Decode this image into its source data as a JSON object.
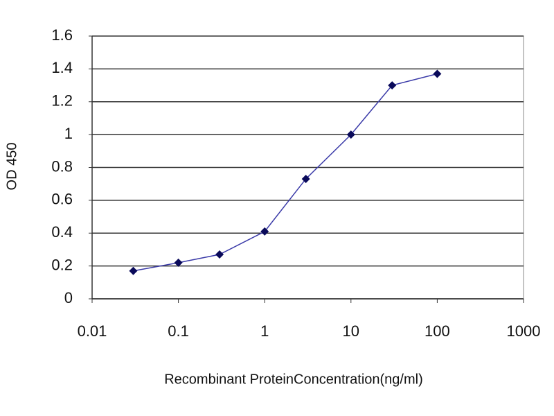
{
  "chart_data": {
    "type": "line",
    "x_label": "Recombinant ProteinConcentration(ng/ml)",
    "y_label": "OD 450",
    "x": [
      0.03,
      0.1,
      0.3,
      1,
      3,
      10,
      30,
      100
    ],
    "values": [
      0.17,
      0.22,
      0.27,
      0.41,
      0.73,
      1.0,
      1.3,
      1.37
    ],
    "color": "#3a3aa8",
    "marker_color": "#0a0a5a",
    "x_log": true,
    "xlim": [
      0.01,
      1000
    ],
    "xticks": [
      0.01,
      0.1,
      1,
      10,
      100,
      1000
    ],
    "ylim": [
      0,
      1.6
    ],
    "yticks": [
      0,
      0.2,
      0.4,
      0.6,
      0.8,
      1,
      1.2,
      1.4,
      1.6
    ],
    "grid": true
  }
}
